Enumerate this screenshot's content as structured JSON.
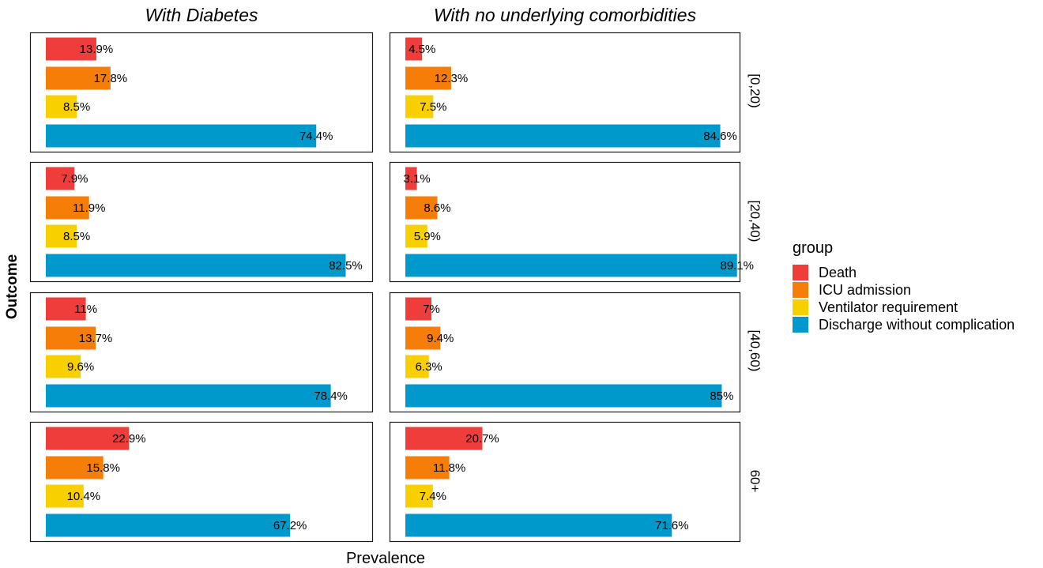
{
  "chart_data": {
    "type": "bar",
    "orientation": "horizontal",
    "facet_columns": [
      "With Diabetes",
      "With no underlying comorbidities"
    ],
    "facet_rows": [
      "[0,20)",
      "[20,40)",
      "[40,60)",
      "60+"
    ],
    "categories": [
      "Death",
      "ICU admission",
      "Ventilator requirement",
      "Discharge without complication"
    ],
    "xlabel": "Prevalence",
    "ylabel": "Outcome",
    "legend_title": "group",
    "legend_position": "right",
    "grid": false,
    "xlim": [
      0,
      90
    ],
    "colors": {
      "Death": "#ee3d3a",
      "ICU admission": "#f57d08",
      "Ventilator requirement": "#f8d000",
      "Discharge without complication": "#0099cc"
    },
    "panels": [
      {
        "column": "With Diabetes",
        "row": "[0,20)",
        "values": [
          13.9,
          17.8,
          8.5,
          74.4
        ],
        "labels": [
          "13.9%",
          "17.8%",
          "8.5%",
          "74.4%"
        ]
      },
      {
        "column": "With no underlying comorbidities",
        "row": "[0,20)",
        "values": [
          4.5,
          12.3,
          7.5,
          84.6
        ],
        "labels": [
          "4.5%",
          "12.3%",
          "7.5%",
          "84.6%"
        ]
      },
      {
        "column": "With Diabetes",
        "row": "[20,40)",
        "values": [
          7.9,
          11.9,
          8.5,
          82.5
        ],
        "labels": [
          "7.9%",
          "11.9%",
          "8.5%",
          "82.5%"
        ]
      },
      {
        "column": "With no underlying comorbidities",
        "row": "[20,40)",
        "values": [
          3.1,
          8.6,
          5.9,
          89.1
        ],
        "labels": [
          "3.1%",
          "8.6%",
          "5.9%",
          "89.1%"
        ]
      },
      {
        "column": "With Diabetes",
        "row": "[40,60)",
        "values": [
          11,
          13.7,
          9.6,
          78.4
        ],
        "labels": [
          "11%",
          "13.7%",
          "9.6%",
          "78.4%"
        ]
      },
      {
        "column": "With no underlying comorbidities",
        "row": "[40,60)",
        "values": [
          7,
          9.4,
          6.3,
          85
        ],
        "labels": [
          "7%",
          "9.4%",
          "6.3%",
          "85%"
        ]
      },
      {
        "column": "With Diabetes",
        "row": "60+",
        "values": [
          22.9,
          15.8,
          10.4,
          67.2
        ],
        "labels": [
          "22.9%",
          "15.8%",
          "10.4%",
          "67.2%"
        ]
      },
      {
        "column": "With no underlying comorbidities",
        "row": "60+",
        "values": [
          20.7,
          11.8,
          7.4,
          71.6
        ],
        "labels": [
          "20.7%",
          "11.8%",
          "7.4%",
          "71.6%"
        ]
      }
    ]
  }
}
